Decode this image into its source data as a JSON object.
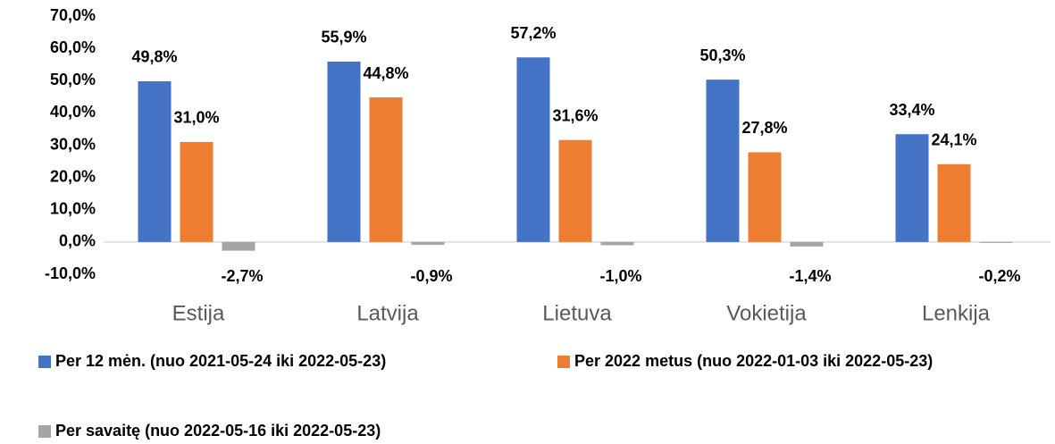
{
  "chart_data": {
    "type": "bar",
    "categories": [
      "Estija",
      "Latvija",
      "Lietuva",
      "Vokietija",
      "Lenkija"
    ],
    "series": [
      {
        "name": "Per 12 mėn. (nuo 2021-05-24 iki 2022-05-23)",
        "color": "#4472c4",
        "values": [
          49.8,
          55.9,
          57.2,
          50.3,
          33.4
        ],
        "value_labels": [
          "49,8%",
          "55,9%",
          "57,2%",
          "50,3%",
          "33,4%"
        ]
      },
      {
        "name": "Per 2022 metus (nuo 2022-01-03 iki 2022-05-23)",
        "color": "#ed7d31",
        "values": [
          31.0,
          44.8,
          31.6,
          27.8,
          24.1
        ],
        "value_labels": [
          "31,0%",
          "44,8%",
          "31,6%",
          "27,8%",
          "24,1%"
        ]
      },
      {
        "name": "Per savaitę (nuo 2022-05-16 iki 2022-05-23)",
        "color": "#a5a5a5",
        "values": [
          -2.7,
          -0.9,
          -1.0,
          -1.4,
          -0.2
        ],
        "value_labels": [
          "-2,7%",
          "-0,9%",
          "-1,0%",
          "-1,4%",
          "-0,2%"
        ]
      }
    ],
    "ylim": [
      -10,
      70
    ],
    "yticks": [
      {
        "value": -10,
        "label": "-10,0%"
      },
      {
        "value": 0,
        "label": "0,0%"
      },
      {
        "value": 10,
        "label": "10,0%"
      },
      {
        "value": 20,
        "label": "20,0%"
      },
      {
        "value": 30,
        "label": "30,0%"
      },
      {
        "value": 40,
        "label": "40,0%"
      },
      {
        "value": 50,
        "label": "50,0%"
      },
      {
        "value": 60,
        "label": "60,0%"
      },
      {
        "value": 70,
        "label": "70,0%"
      }
    ],
    "grid": false,
    "legend": "bottom"
  }
}
